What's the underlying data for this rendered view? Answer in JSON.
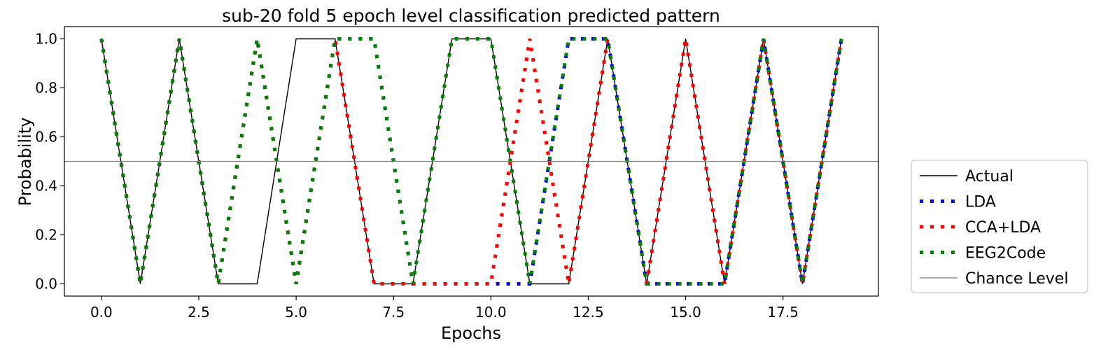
{
  "chart_data": {
    "type": "line",
    "title": "sub-20 fold 5 epoch level classification predicted pattern",
    "xlabel": "Epochs",
    "ylabel": "Probability",
    "xlim": [
      -0.95,
      19.95
    ],
    "ylim": [
      -0.05,
      1.05
    ],
    "xticks": [
      0,
      2.5,
      5,
      7.5,
      10,
      12.5,
      15,
      17.5
    ],
    "xtick_labels": [
      "0.0",
      "2.5",
      "5.0",
      "7.5",
      "10.0",
      "12.5",
      "15.0",
      "17.5"
    ],
    "yticks": [
      0,
      0.2,
      0.4,
      0.6,
      0.8,
      1.0
    ],
    "ytick_labels": [
      "0.0",
      "0.2",
      "0.4",
      "0.6",
      "0.8",
      "1.0"
    ],
    "legend_position": "outside-right",
    "chance_level": 0.5,
    "series": [
      {
        "name": "Actual",
        "style": "solid",
        "color": "#000000",
        "x": [
          0,
          1,
          2,
          3,
          4,
          5,
          6,
          7,
          8,
          9,
          10,
          11,
          12,
          13,
          14,
          15,
          16,
          17,
          18,
          19
        ],
        "y": [
          1,
          0,
          1,
          0,
          0,
          1,
          1,
          0,
          0,
          1,
          1,
          0,
          0,
          1,
          0,
          1,
          0,
          1,
          0,
          1
        ]
      },
      {
        "name": "LDA",
        "style": "dotted",
        "color": "#0000ff",
        "x": [
          0,
          1,
          2,
          3,
          4,
          5,
          6,
          7,
          8,
          9,
          10,
          11,
          12,
          13,
          14,
          15,
          16,
          17,
          18,
          19
        ],
        "y": [
          1,
          0,
          1,
          0,
          1,
          0,
          1,
          1,
          0,
          0,
          0,
          0,
          1,
          1,
          0,
          0,
          0,
          1,
          0,
          1
        ]
      },
      {
        "name": "CCA+LDA",
        "style": "dotted",
        "color": "#ff0000",
        "x": [
          0,
          1,
          2,
          3,
          4,
          5,
          6,
          7,
          8,
          9,
          10,
          11,
          12,
          13,
          14,
          15,
          16,
          17,
          18,
          19
        ],
        "y": [
          1,
          0,
          1,
          0,
          1,
          0,
          1,
          0,
          0,
          0,
          0,
          1,
          0,
          1,
          0,
          1,
          0,
          1,
          0,
          1
        ]
      },
      {
        "name": "EEG2Code",
        "style": "dotted",
        "color": "#008000",
        "x": [
          0,
          1,
          2,
          3,
          4,
          5,
          6,
          7,
          8,
          9,
          10,
          11,
          12,
          13,
          14,
          15,
          16,
          17,
          18,
          19
        ],
        "y": [
          1,
          0,
          1,
          0,
          1,
          0,
          1,
          1,
          0,
          1,
          1,
          0,
          1,
          1,
          0,
          0,
          0,
          1,
          0,
          1
        ]
      },
      {
        "name": "Chance Level",
        "style": "hline",
        "color": "#808080",
        "y_const": 0.5
      }
    ]
  }
}
